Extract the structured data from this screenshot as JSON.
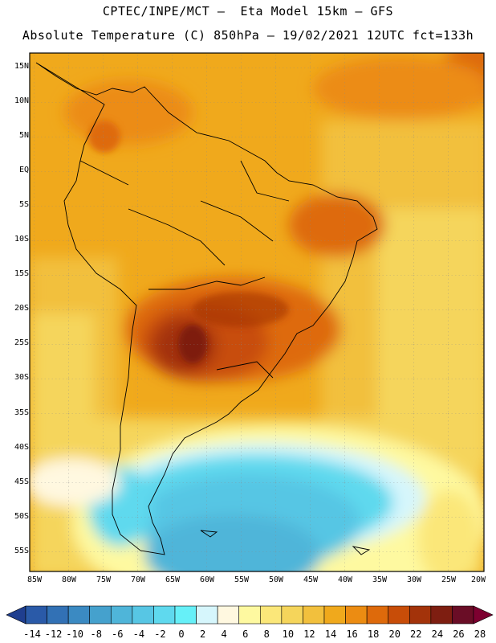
{
  "header": {
    "line1": "CPTEC/INPE/MCT –  Eta Model 15km – GFS",
    "line2": "Absolute Temperature (C) 850hPa – 19/02/2021 12UTC fct=133h"
  },
  "latitude_labels": [
    "15N",
    "10N",
    "5N",
    "EQ",
    "5S",
    "10S",
    "15S",
    "20S",
    "25S",
    "30S",
    "35S",
    "40S",
    "45S",
    "50S",
    "55S"
  ],
  "longitude_labels": [
    "85W",
    "80W",
    "75W",
    "70W",
    "65W",
    "60W",
    "55W",
    "50W",
    "45W",
    "40W",
    "35W",
    "30W",
    "25W",
    "20W"
  ],
  "colorbar": {
    "labels": [
      "-14",
      "-12",
      "-10",
      "-8",
      "-6",
      "-4",
      "-2",
      "0",
      "2",
      "4",
      "6",
      "8",
      "10",
      "12",
      "14",
      "16",
      "18",
      "20",
      "22",
      "24",
      "26",
      "28"
    ],
    "colors": [
      "#1f3e8f",
      "#2a5aa8",
      "#3271b5",
      "#3b8ac2",
      "#45a1cd",
      "#4fb5d9",
      "#57c6e4",
      "#5fd9ee",
      "#66f0f8",
      "#d6f6fc",
      "#fff8e0",
      "#fef9a0",
      "#fbe779",
      "#f5d55b",
      "#f2c03d",
      "#f0a91c",
      "#ec8c12",
      "#de6a0b",
      "#c84d08",
      "#a3330a",
      "#7e1e11",
      "#6a0d26",
      "#7d0030"
    ]
  }
}
